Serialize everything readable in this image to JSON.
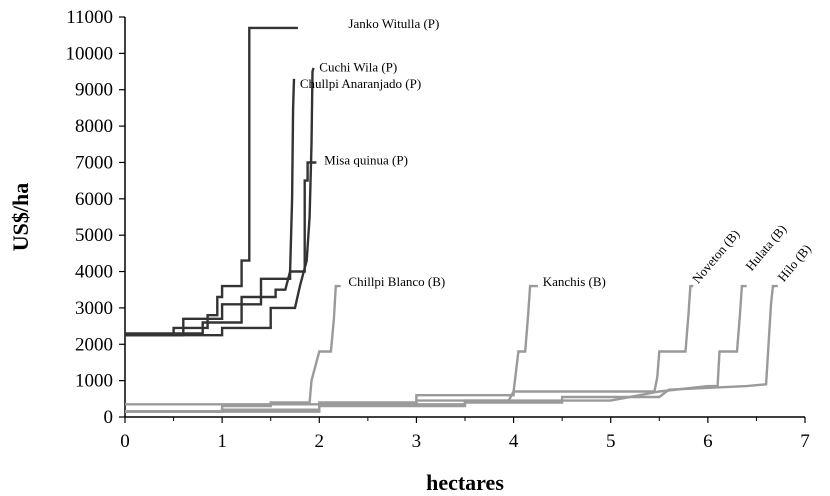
{
  "chart_data": {
    "type": "line",
    "xlabel": "hectares",
    "ylabel": "US$/ha",
    "xlim": [
      0,
      7
    ],
    "ylim": [
      0,
      11000
    ],
    "xticks": [
      0,
      1,
      2,
      3,
      4,
      5,
      6,
      7
    ],
    "yticks": [
      0,
      1000,
      2000,
      3000,
      4000,
      5000,
      6000,
      7000,
      8000,
      9000,
      10000,
      11000
    ],
    "grid": false,
    "colors": {
      "dark": "#333333",
      "light": "#9a9a9a"
    },
    "series": [
      {
        "name": "Janko Witulla (P)",
        "color": "dark",
        "points": [
          [
            0,
            2250
          ],
          [
            0.5,
            2250
          ],
          [
            0.5,
            2450
          ],
          [
            0.85,
            2450
          ],
          [
            0.85,
            2800
          ],
          [
            0.95,
            2800
          ],
          [
            0.95,
            3300
          ],
          [
            1.0,
            3300
          ],
          [
            1.0,
            3600
          ],
          [
            1.2,
            3600
          ],
          [
            1.2,
            4300
          ],
          [
            1.28,
            4300
          ],
          [
            1.28,
            10700
          ],
          [
            1.78,
            10700
          ]
        ]
      },
      {
        "name": "Cuchi Wila (P)",
        "color": "dark",
        "points": [
          [
            0,
            2250
          ],
          [
            1.0,
            2250
          ],
          [
            1.0,
            2450
          ],
          [
            1.5,
            2450
          ],
          [
            1.5,
            3000
          ],
          [
            1.75,
            3000
          ],
          [
            1.8,
            3600
          ],
          [
            1.87,
            4300
          ],
          [
            1.9,
            5500
          ],
          [
            1.92,
            7500
          ],
          [
            1.93,
            9500
          ],
          [
            1.94,
            9600
          ]
        ]
      },
      {
        "name": "Chullpi Anaranjado (P)",
        "color": "dark",
        "points": [
          [
            0,
            2300
          ],
          [
            0.8,
            2300
          ],
          [
            0.8,
            2600
          ],
          [
            1.2,
            2600
          ],
          [
            1.2,
            3300
          ],
          [
            1.55,
            3300
          ],
          [
            1.55,
            3500
          ],
          [
            1.65,
            3500
          ],
          [
            1.7,
            4000
          ],
          [
            1.72,
            6000
          ],
          [
            1.73,
            8500
          ],
          [
            1.74,
            9300
          ]
        ]
      },
      {
        "name": "Misa quinua (P)",
        "color": "dark",
        "points": [
          [
            0,
            2250
          ],
          [
            0.6,
            2250
          ],
          [
            0.6,
            2700
          ],
          [
            1.0,
            2700
          ],
          [
            1.0,
            3100
          ],
          [
            1.4,
            3100
          ],
          [
            1.4,
            3800
          ],
          [
            1.7,
            3800
          ],
          [
            1.7,
            4000
          ],
          [
            1.85,
            4000
          ],
          [
            1.85,
            6500
          ],
          [
            1.88,
            6500
          ],
          [
            1.88,
            7000
          ],
          [
            1.97,
            7000
          ]
        ]
      },
      {
        "name": "Chillpi Blanco (B)",
        "color": "light",
        "points": [
          [
            0,
            150
          ],
          [
            1.0,
            150
          ],
          [
            1.0,
            300
          ],
          [
            1.5,
            300
          ],
          [
            1.5,
            400
          ],
          [
            1.9,
            400
          ],
          [
            1.92,
            1000
          ],
          [
            2.0,
            1800
          ],
          [
            2.12,
            1800
          ],
          [
            2.15,
            2700
          ],
          [
            2.17,
            3600
          ],
          [
            2.22,
            3600
          ]
        ]
      },
      {
        "name": "Kanchis (B)",
        "color": "light",
        "points": [
          [
            0,
            150
          ],
          [
            1.0,
            150
          ],
          [
            1.0,
            200
          ],
          [
            2.0,
            200
          ],
          [
            2.0,
            350
          ],
          [
            3.0,
            350
          ],
          [
            3.0,
            450
          ],
          [
            3.95,
            450
          ],
          [
            4.0,
            700
          ],
          [
            4.05,
            1800
          ],
          [
            4.12,
            1800
          ],
          [
            4.15,
            2800
          ],
          [
            4.17,
            3600
          ],
          [
            4.25,
            3600
          ]
        ]
      },
      {
        "name": "Noveton (B)",
        "color": "light",
        "points": [
          [
            0,
            350
          ],
          [
            2.0,
            350
          ],
          [
            2.0,
            400
          ],
          [
            3.0,
            400
          ],
          [
            3.0,
            600
          ],
          [
            4.0,
            600
          ],
          [
            4.0,
            700
          ],
          [
            5.45,
            700
          ],
          [
            5.48,
            1100
          ],
          [
            5.5,
            1800
          ],
          [
            5.77,
            1800
          ],
          [
            5.8,
            2800
          ],
          [
            5.82,
            3600
          ],
          [
            5.85,
            3600
          ]
        ]
      },
      {
        "name": "Hulata (B)",
        "color": "light",
        "points": [
          [
            0,
            150
          ],
          [
            2.0,
            150
          ],
          [
            2.0,
            350
          ],
          [
            3.5,
            350
          ],
          [
            3.5,
            450
          ],
          [
            5.0,
            450
          ],
          [
            5.5,
            700
          ],
          [
            6.0,
            850
          ],
          [
            6.1,
            850
          ],
          [
            6.12,
            1800
          ],
          [
            6.3,
            1800
          ],
          [
            6.33,
            2800
          ],
          [
            6.35,
            3600
          ],
          [
            6.4,
            3600
          ]
        ]
      },
      {
        "name": "Hilo (B)",
        "color": "light",
        "points": [
          [
            0,
            150
          ],
          [
            2.0,
            150
          ],
          [
            2.0,
            300
          ],
          [
            3.5,
            300
          ],
          [
            3.5,
            400
          ],
          [
            4.5,
            400
          ],
          [
            4.5,
            550
          ],
          [
            5.5,
            550
          ],
          [
            5.6,
            750
          ],
          [
            6.4,
            850
          ],
          [
            6.6,
            900
          ],
          [
            6.62,
            1800
          ],
          [
            6.65,
            3100
          ],
          [
            6.67,
            3600
          ],
          [
            6.72,
            3600
          ]
        ]
      }
    ],
    "annotations": [
      {
        "text": "Janko Witulla (P)",
        "x": 2.3,
        "y": 10700
      },
      {
        "text": "Cuchi Wila (P)",
        "x": 2.0,
        "y": 9500
      },
      {
        "text": "Chullpi Anaranjado (P)",
        "x": 1.8,
        "y": 9050
      },
      {
        "text": "Misa quinua (P)",
        "x": 2.05,
        "y": 6950
      },
      {
        "text": "Chillpi Blanco (B)",
        "x": 2.3,
        "y": 3600
      },
      {
        "text": "Kanchis (B)",
        "x": 4.3,
        "y": 3600
      },
      {
        "text": "Noveton (B)",
        "x": 5.9,
        "y": 3650,
        "rotate": -50
      },
      {
        "text": "Hulata (B)",
        "x": 6.45,
        "y": 4000,
        "rotate": -50
      },
      {
        "text": "Hilo (B)",
        "x": 6.78,
        "y": 3700,
        "rotate": -50
      }
    ]
  }
}
